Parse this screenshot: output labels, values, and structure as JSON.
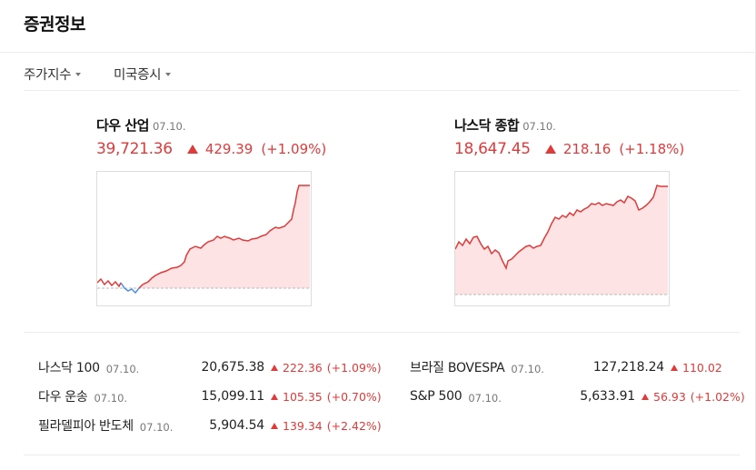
{
  "section_title": "증권정보",
  "dropdowns": [
    {
      "label": "주가지수"
    },
    {
      "label": "미국증시"
    }
  ],
  "cards": [
    {
      "name": "다우 산업",
      "date": "07.10.",
      "value": "39,721.36",
      "change": "429.39",
      "pct": "(+1.09%)"
    },
    {
      "name": "나스닥 종합",
      "date": "07.10.",
      "value": "18,647.45",
      "change": "218.16",
      "pct": "(+1.18%)"
    }
  ],
  "colors": {
    "up": "#e03a3a",
    "down": "#4a90e2",
    "fill_up": "#fde3e3",
    "baseline": "#b9b9b9"
  },
  "left_rows": [
    {
      "name": "나스닥 100",
      "date": "07.10.",
      "value": "20,675.38",
      "change": "222.36",
      "pct": "(+1.09%)"
    },
    {
      "name": "다우 운송",
      "date": "07.10.",
      "value": "15,099.11",
      "change": "105.35",
      "pct": "(+0.70%)"
    },
    {
      "name": "필라델피아 반도체",
      "date": "07.10.",
      "value": "5,904.54",
      "change": "139.34",
      "pct": "(+2.42%)"
    }
  ],
  "right_rows": [
    {
      "name": "브라질 BOVESPA",
      "date": "07.10.",
      "value": "127,218.24",
      "change": "110.02",
      "pct": ""
    },
    {
      "name": "S&P 500",
      "date": "07.10.",
      "value": "5,633.91",
      "change": "56.93",
      "pct": "(+1.02%)"
    }
  ]
}
